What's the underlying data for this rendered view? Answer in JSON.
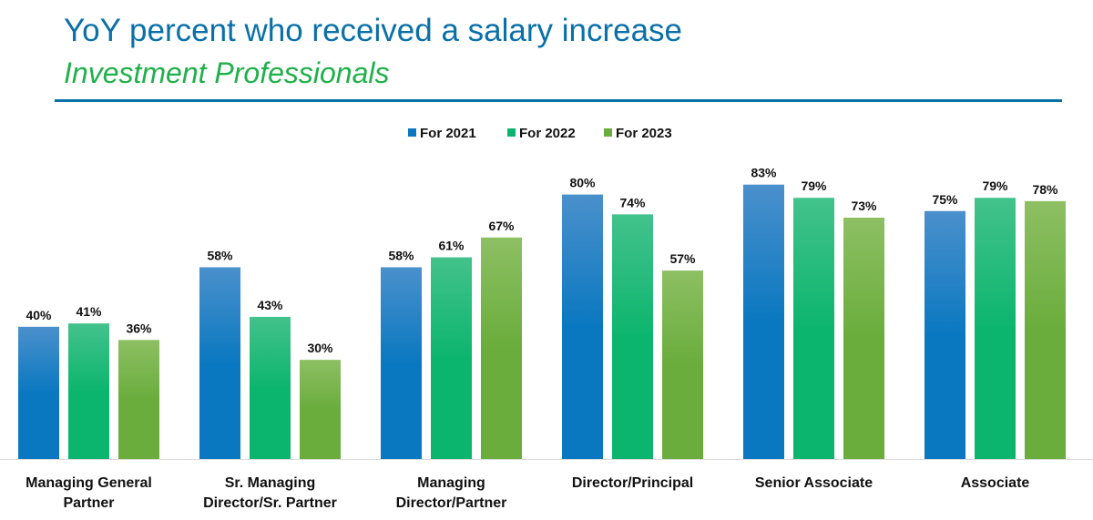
{
  "chart_data": {
    "type": "bar",
    "title": "YoY percent who received a salary increase",
    "subtitle": "Investment Professionals",
    "categories": [
      [
        "Managing General",
        "Partner"
      ],
      [
        "Sr. Managing",
        "Director/Sr. Partner"
      ],
      [
        "Managing",
        "Director/Partner"
      ],
      [
        "Director/Principal"
      ],
      [
        "Senior Associate"
      ],
      [
        "Associate"
      ]
    ],
    "series": [
      {
        "name": "For 2021",
        "color": "#0a78c0",
        "values": [
          40,
          58,
          58,
          80,
          83,
          75
        ]
      },
      {
        "name": "For 2022",
        "color": "#0cb56e",
        "values": [
          41,
          43,
          61,
          74,
          79,
          79
        ]
      },
      {
        "name": "For 2023",
        "color": "#6aad3c",
        "values": [
          36,
          30,
          67,
          57,
          73,
          78
        ]
      }
    ],
    "value_suffix": "%",
    "ylim": [
      0,
      100
    ],
    "legend": "top-center",
    "grid": false
  }
}
